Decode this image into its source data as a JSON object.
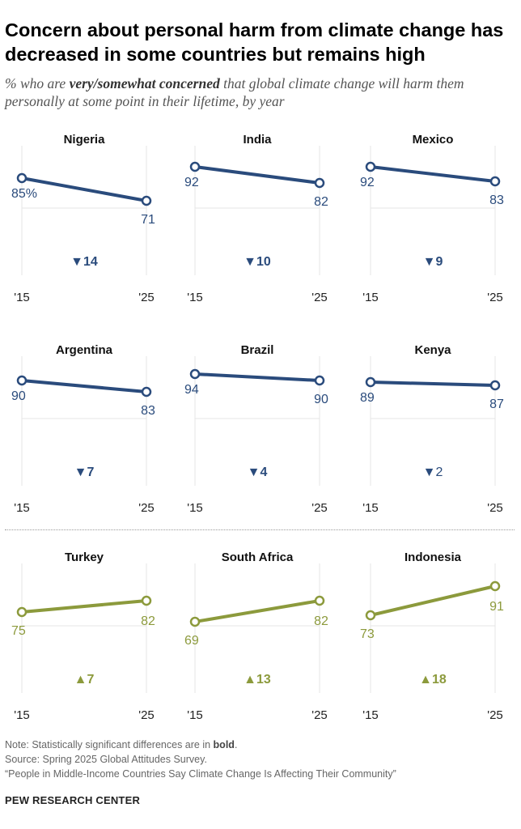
{
  "title": "Concern about personal harm from climate change has decreased in some countries but remains high",
  "subtitle": {
    "prefix": "% who are ",
    "emphasis": "very/somewhat concerned",
    "suffix": " that global climate change will harm them personally at some point in their lifetime, by year"
  },
  "note": {
    "prefix": "Note: Statistically significant differences are in ",
    "bold_word": "bold",
    "suffix": "."
  },
  "source": "Source: Spring 2025 Global Attitudes Survey.",
  "report": "“People in Middle-Income Countries Say Climate Change Is Affecting Their Community”",
  "brand": "PEW RESEARCH CENTER",
  "colors": {
    "decrease": "#2a4b7c",
    "increase": "#8c9a3c",
    "grid": "#e6e6e6"
  },
  "chart_data": {
    "type": "line",
    "x": [
      "'15",
      "'25"
    ],
    "ylim": [
      60,
      100
    ],
    "grid": "vertical",
    "charts": [
      {
        "name": "Nigeria",
        "values": [
          85,
          71
        ],
        "labels": [
          "85%",
          "71"
        ],
        "change": "▼14",
        "direction": "down",
        "significant": true
      },
      {
        "name": "India",
        "values": [
          92,
          82
        ],
        "labels": [
          "92",
          "82"
        ],
        "change": "▼10",
        "direction": "down",
        "significant": true
      },
      {
        "name": "Mexico",
        "values": [
          92,
          83
        ],
        "labels": [
          "92",
          "83"
        ],
        "change": "▼9",
        "direction": "down",
        "significant": true
      },
      {
        "name": "Argentina",
        "values": [
          90,
          83
        ],
        "labels": [
          "90",
          "83"
        ],
        "change": "▼7",
        "direction": "down",
        "significant": true
      },
      {
        "name": "Brazil",
        "values": [
          94,
          90
        ],
        "labels": [
          "94",
          "90"
        ],
        "change": "▼4",
        "direction": "down",
        "significant": true
      },
      {
        "name": "Kenya",
        "values": [
          89,
          87
        ],
        "labels": [
          "89",
          "87"
        ],
        "change": "▼2",
        "direction": "down",
        "significant": false
      },
      {
        "name": "Turkey",
        "values": [
          75,
          82
        ],
        "labels": [
          "75",
          "82"
        ],
        "change": "▲7",
        "direction": "up",
        "significant": true
      },
      {
        "name": "South Africa",
        "values": [
          69,
          82
        ],
        "labels": [
          "69",
          "82"
        ],
        "change": "▲13",
        "direction": "up",
        "significant": true
      },
      {
        "name": "Indonesia",
        "values": [
          73,
          91
        ],
        "labels": [
          "73",
          "91"
        ],
        "change": "▲18",
        "direction": "up",
        "significant": true
      }
    ]
  }
}
